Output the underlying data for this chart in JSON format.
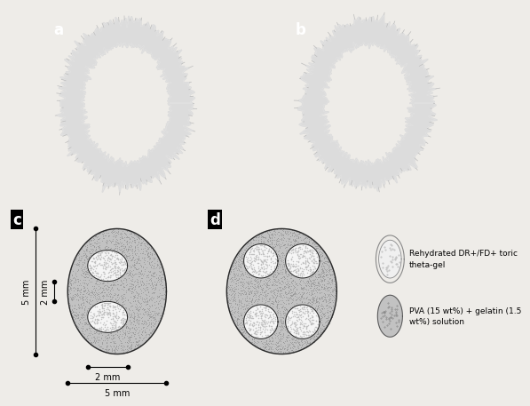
{
  "fig_bg": "#eeece8",
  "panel_ab_bg": "#1a1a1a",
  "label_a": "a",
  "label_b": "b",
  "label_c": "c",
  "label_d": "d",
  "legend_label1": "Rehydrated DR+/FD+ toric\ntheta-gel",
  "legend_label2": "PVA (15 wt%) + gelatin (1.5\nwt%) solution",
  "outer_edge": "#2a2a2a",
  "outer_fill": "#c2c2c2",
  "inner_fill": "#f5f5f5",
  "dot_color": "#c0c0c0",
  "scatter_color": "#909090"
}
